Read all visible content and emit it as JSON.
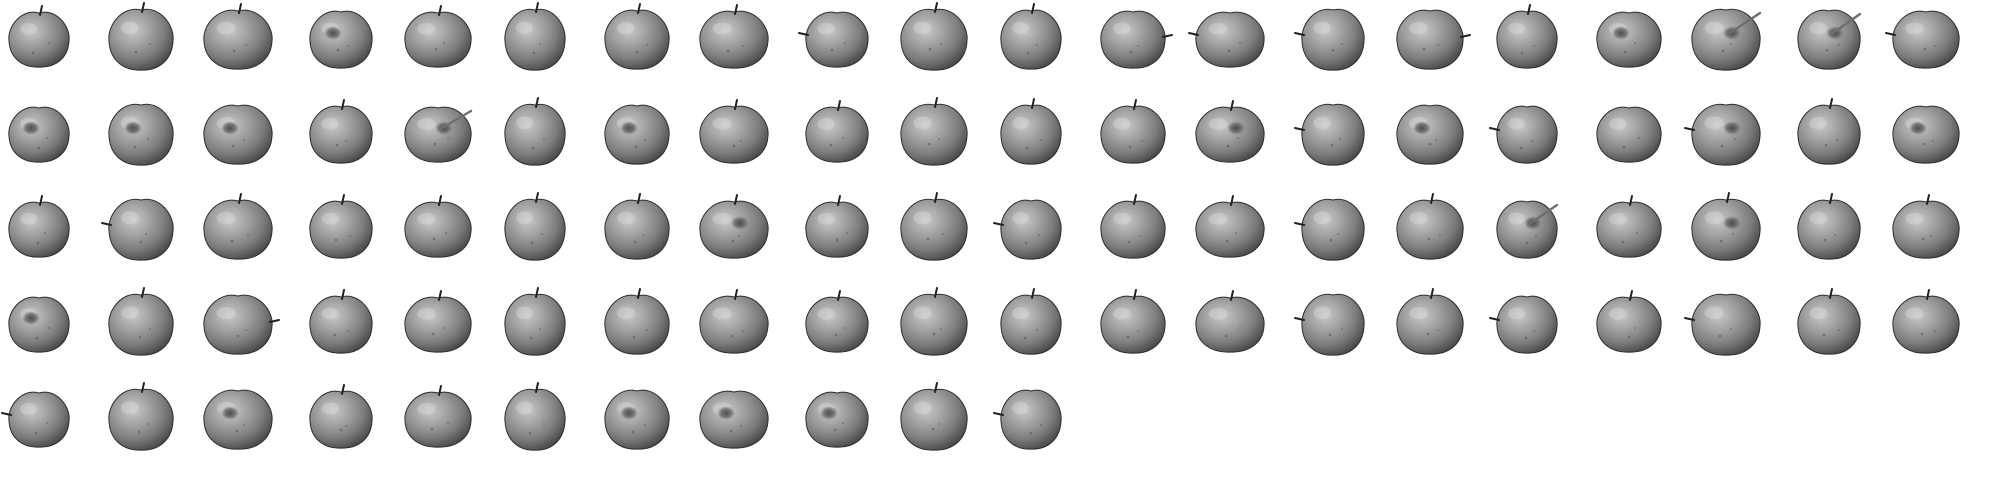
{
  "figure": {
    "background": "#ffffff",
    "rows": 5,
    "columns": 20,
    "image_count": 91,
    "subject": "apple",
    "color_mode": "grayscale"
  },
  "images": [
    {
      "index": 0,
      "subject": "apple",
      "stem": "top",
      "dimple": false
    },
    {
      "index": 1,
      "subject": "apple",
      "stem": "top",
      "dimple": false
    },
    {
      "index": 2,
      "subject": "apple",
      "stem": "top",
      "dimple": false
    },
    {
      "index": 3,
      "subject": "apple",
      "stem": "none",
      "dimple": true
    },
    {
      "index": 4,
      "subject": "apple",
      "stem": "top",
      "dimple": false
    },
    {
      "index": 5,
      "subject": "apple",
      "stem": "top",
      "dimple": false
    },
    {
      "index": 6,
      "subject": "apple",
      "stem": "top",
      "dimple": false
    },
    {
      "index": 7,
      "subject": "apple",
      "stem": "top",
      "dimple": false
    },
    {
      "index": 8,
      "subject": "apple",
      "stem": "left",
      "dimple": false
    },
    {
      "index": 9,
      "subject": "apple",
      "stem": "top",
      "dimple": false
    },
    {
      "index": 10,
      "subject": "apple",
      "stem": "top",
      "dimple": false
    },
    {
      "index": 11,
      "subject": "apple",
      "stem": "right",
      "dimple": false
    },
    {
      "index": 12,
      "subject": "apple",
      "stem": "left",
      "dimple": false
    },
    {
      "index": 13,
      "subject": "apple",
      "stem": "left",
      "dimple": false
    },
    {
      "index": 14,
      "subject": "apple",
      "stem": "right",
      "dimple": false
    },
    {
      "index": 15,
      "subject": "apple",
      "stem": "top",
      "dimple": false
    },
    {
      "index": 16,
      "subject": "apple",
      "stem": "none",
      "dimple": true
    },
    {
      "index": 17,
      "subject": "apple",
      "stem": "diagonal",
      "dimple": true
    },
    {
      "index": 18,
      "subject": "apple",
      "stem": "diagonal",
      "dimple": true
    },
    {
      "index": 19,
      "subject": "apple",
      "stem": "left",
      "dimple": false
    },
    {
      "index": 20,
      "subject": "apple",
      "stem": "none",
      "dimple": true
    },
    {
      "index": 21,
      "subject": "apple",
      "stem": "none",
      "dimple": true
    },
    {
      "index": 22,
      "subject": "apple",
      "stem": "none",
      "dimple": true
    },
    {
      "index": 23,
      "subject": "apple",
      "stem": "top",
      "dimple": false
    },
    {
      "index": 24,
      "subject": "apple",
      "stem": "diagonal",
      "dimple": true
    },
    {
      "index": 25,
      "subject": "apple",
      "stem": "top",
      "dimple": false
    },
    {
      "index": 26,
      "subject": "apple",
      "stem": "none",
      "dimple": true
    },
    {
      "index": 27,
      "subject": "apple",
      "stem": "top",
      "dimple": false
    },
    {
      "index": 28,
      "subject": "apple",
      "stem": "top",
      "dimple": false
    },
    {
      "index": 29,
      "subject": "apple",
      "stem": "top",
      "dimple": false
    },
    {
      "index": 30,
      "subject": "apple",
      "stem": "top",
      "dimple": false
    },
    {
      "index": 31,
      "subject": "apple",
      "stem": "top",
      "dimple": false
    },
    {
      "index": 32,
      "subject": "apple",
      "stem": "top",
      "dimple": true
    },
    {
      "index": 33,
      "subject": "apple",
      "stem": "left",
      "dimple": false
    },
    {
      "index": 34,
      "subject": "apple",
      "stem": "none",
      "dimple": true
    },
    {
      "index": 35,
      "subject": "apple",
      "stem": "left",
      "dimple": false
    },
    {
      "index": 36,
      "subject": "apple",
      "stem": "none",
      "dimple": false
    },
    {
      "index": 37,
      "subject": "apple",
      "stem": "left",
      "dimple": true
    },
    {
      "index": 38,
      "subject": "apple",
      "stem": "top",
      "dimple": false
    },
    {
      "index": 39,
      "subject": "apple",
      "stem": "none",
      "dimple": true
    },
    {
      "index": 40,
      "subject": "apple",
      "stem": "top",
      "dimple": false
    },
    {
      "index": 41,
      "subject": "apple",
      "stem": "left",
      "dimple": false
    },
    {
      "index": 42,
      "subject": "apple",
      "stem": "top",
      "dimple": false
    },
    {
      "index": 43,
      "subject": "apple",
      "stem": "top",
      "dimple": false
    },
    {
      "index": 44,
      "subject": "apple",
      "stem": "top",
      "dimple": false
    },
    {
      "index": 45,
      "subject": "apple",
      "stem": "top",
      "dimple": false
    },
    {
      "index": 46,
      "subject": "apple",
      "stem": "top",
      "dimple": false
    },
    {
      "index": 47,
      "subject": "apple",
      "stem": "top",
      "dimple": true
    },
    {
      "index": 48,
      "subject": "apple",
      "stem": "top",
      "dimple": false
    },
    {
      "index": 49,
      "subject": "apple",
      "stem": "top",
      "dimple": false
    },
    {
      "index": 50,
      "subject": "apple",
      "stem": "left",
      "dimple": false
    },
    {
      "index": 51,
      "subject": "apple",
      "stem": "top",
      "dimple": false
    },
    {
      "index": 52,
      "subject": "apple",
      "stem": "top",
      "dimple": false
    },
    {
      "index": 53,
      "subject": "apple",
      "stem": "left",
      "dimple": false
    },
    {
      "index": 54,
      "subject": "apple",
      "stem": "top",
      "dimple": false
    },
    {
      "index": 55,
      "subject": "apple",
      "stem": "diagonal",
      "dimple": true
    },
    {
      "index": 56,
      "subject": "apple",
      "stem": "top",
      "dimple": false
    },
    {
      "index": 57,
      "subject": "apple",
      "stem": "top",
      "dimple": true
    },
    {
      "index": 58,
      "subject": "apple",
      "stem": "top",
      "dimple": false
    },
    {
      "index": 59,
      "subject": "apple",
      "stem": "top",
      "dimple": false
    },
    {
      "index": 60,
      "subject": "apple",
      "stem": "none",
      "dimple": true
    },
    {
      "index": 61,
      "subject": "apple",
      "stem": "top",
      "dimple": false
    },
    {
      "index": 62,
      "subject": "apple",
      "stem": "right",
      "dimple": false
    },
    {
      "index": 63,
      "subject": "apple",
      "stem": "top",
      "dimple": false
    },
    {
      "index": 64,
      "subject": "apple",
      "stem": "top",
      "dimple": false
    },
    {
      "index": 65,
      "subject": "apple",
      "stem": "top",
      "dimple": false
    },
    {
      "index": 66,
      "subject": "apple",
      "stem": "top",
      "dimple": false
    },
    {
      "index": 67,
      "subject": "apple",
      "stem": "top",
      "dimple": false
    },
    {
      "index": 68,
      "subject": "apple",
      "stem": "top",
      "dimple": false
    },
    {
      "index": 69,
      "subject": "apple",
      "stem": "top",
      "dimple": false
    },
    {
      "index": 70,
      "subject": "apple",
      "stem": "top",
      "dimple": false
    },
    {
      "index": 71,
      "subject": "apple",
      "stem": "top",
      "dimple": false
    },
    {
      "index": 72,
      "subject": "apple",
      "stem": "top",
      "dimple": false
    },
    {
      "index": 73,
      "subject": "apple",
      "stem": "left",
      "dimple": false
    },
    {
      "index": 74,
      "subject": "apple",
      "stem": "top",
      "dimple": false
    },
    {
      "index": 75,
      "subject": "apple",
      "stem": "left",
      "dimple": false
    },
    {
      "index": 76,
      "subject": "apple",
      "stem": "top",
      "dimple": false
    },
    {
      "index": 77,
      "subject": "apple",
      "stem": "left",
      "dimple": false
    },
    {
      "index": 78,
      "subject": "apple",
      "stem": "top",
      "dimple": false
    },
    {
      "index": 79,
      "subject": "apple",
      "stem": "top",
      "dimple": false
    },
    {
      "index": 80,
      "subject": "apple",
      "stem": "left",
      "dimple": false
    },
    {
      "index": 81,
      "subject": "apple",
      "stem": "top",
      "dimple": false
    },
    {
      "index": 82,
      "subject": "apple",
      "stem": "none",
      "dimple": true
    },
    {
      "index": 83,
      "subject": "apple",
      "stem": "top",
      "dimple": false
    },
    {
      "index": 84,
      "subject": "apple",
      "stem": "top",
      "dimple": false
    },
    {
      "index": 85,
      "subject": "apple",
      "stem": "top",
      "dimple": false
    },
    {
      "index": 86,
      "subject": "apple",
      "stem": "none",
      "dimple": true
    },
    {
      "index": 87,
      "subject": "apple",
      "stem": "none",
      "dimple": true
    },
    {
      "index": 88,
      "subject": "apple",
      "stem": "none",
      "dimple": true
    },
    {
      "index": 89,
      "subject": "apple",
      "stem": "top",
      "dimple": false
    },
    {
      "index": 90,
      "subject": "apple",
      "stem": "left",
      "dimple": false
    }
  ]
}
